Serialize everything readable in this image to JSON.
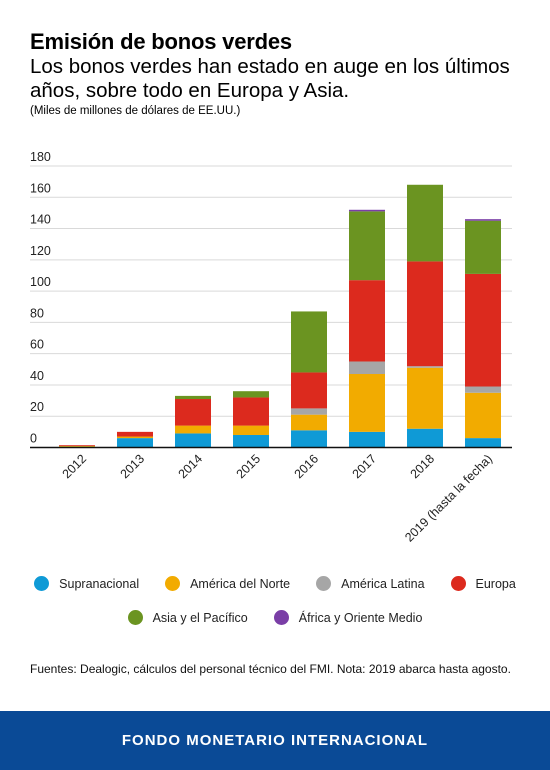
{
  "header": {
    "title": "Emisión de bonos verdes",
    "subtitle": "Los bonos verdes han estado en auge en los últimos años, sobre todo en Europa y Asia.",
    "units": "(Miles de millones de dólares de EE.UU.)"
  },
  "chart_data": {
    "type": "bar",
    "stacked": true,
    "categories": [
      "2012",
      "2013",
      "2014",
      "2015",
      "2016",
      "2017",
      "2018",
      "2019 (hasta la fecha)"
    ],
    "ylim": [
      0,
      180
    ],
    "yticks": [
      0,
      20,
      40,
      60,
      80,
      100,
      120,
      140,
      160,
      180
    ],
    "grid": true,
    "series": [
      {
        "name": "Supranacional",
        "color": "#0f9ad6",
        "values": [
          0.5,
          6,
          9,
          8,
          11,
          10,
          12,
          6
        ]
      },
      {
        "name": "América del Norte",
        "color": "#f2ab00",
        "values": [
          0.5,
          1,
          5,
          6,
          10,
          37,
          39,
          29
        ]
      },
      {
        "name": "América Latina",
        "color": "#a6a6a6",
        "values": [
          0,
          0,
          0,
          0,
          4,
          8,
          1,
          4
        ]
      },
      {
        "name": "Europa",
        "color": "#dc2a1e",
        "values": [
          0.5,
          3,
          17,
          18,
          23,
          52,
          67,
          72
        ]
      },
      {
        "name": "Asia y el Pacífico",
        "color": "#6b9421",
        "values": [
          0,
          0,
          2,
          4,
          39,
          44,
          49,
          34
        ]
      },
      {
        "name": "África y Oriente Medio",
        "color": "#7a3ea6",
        "values": [
          0,
          0,
          0,
          0,
          0,
          1,
          0,
          1
        ]
      }
    ],
    "legend_position": "bottom"
  },
  "source": "Fuentes: Dealogic, cálculos del personal técnico del FMI. Nota: 2019 abarca hasta agosto.",
  "footer": "FONDO MONETARIO INTERNACIONAL"
}
